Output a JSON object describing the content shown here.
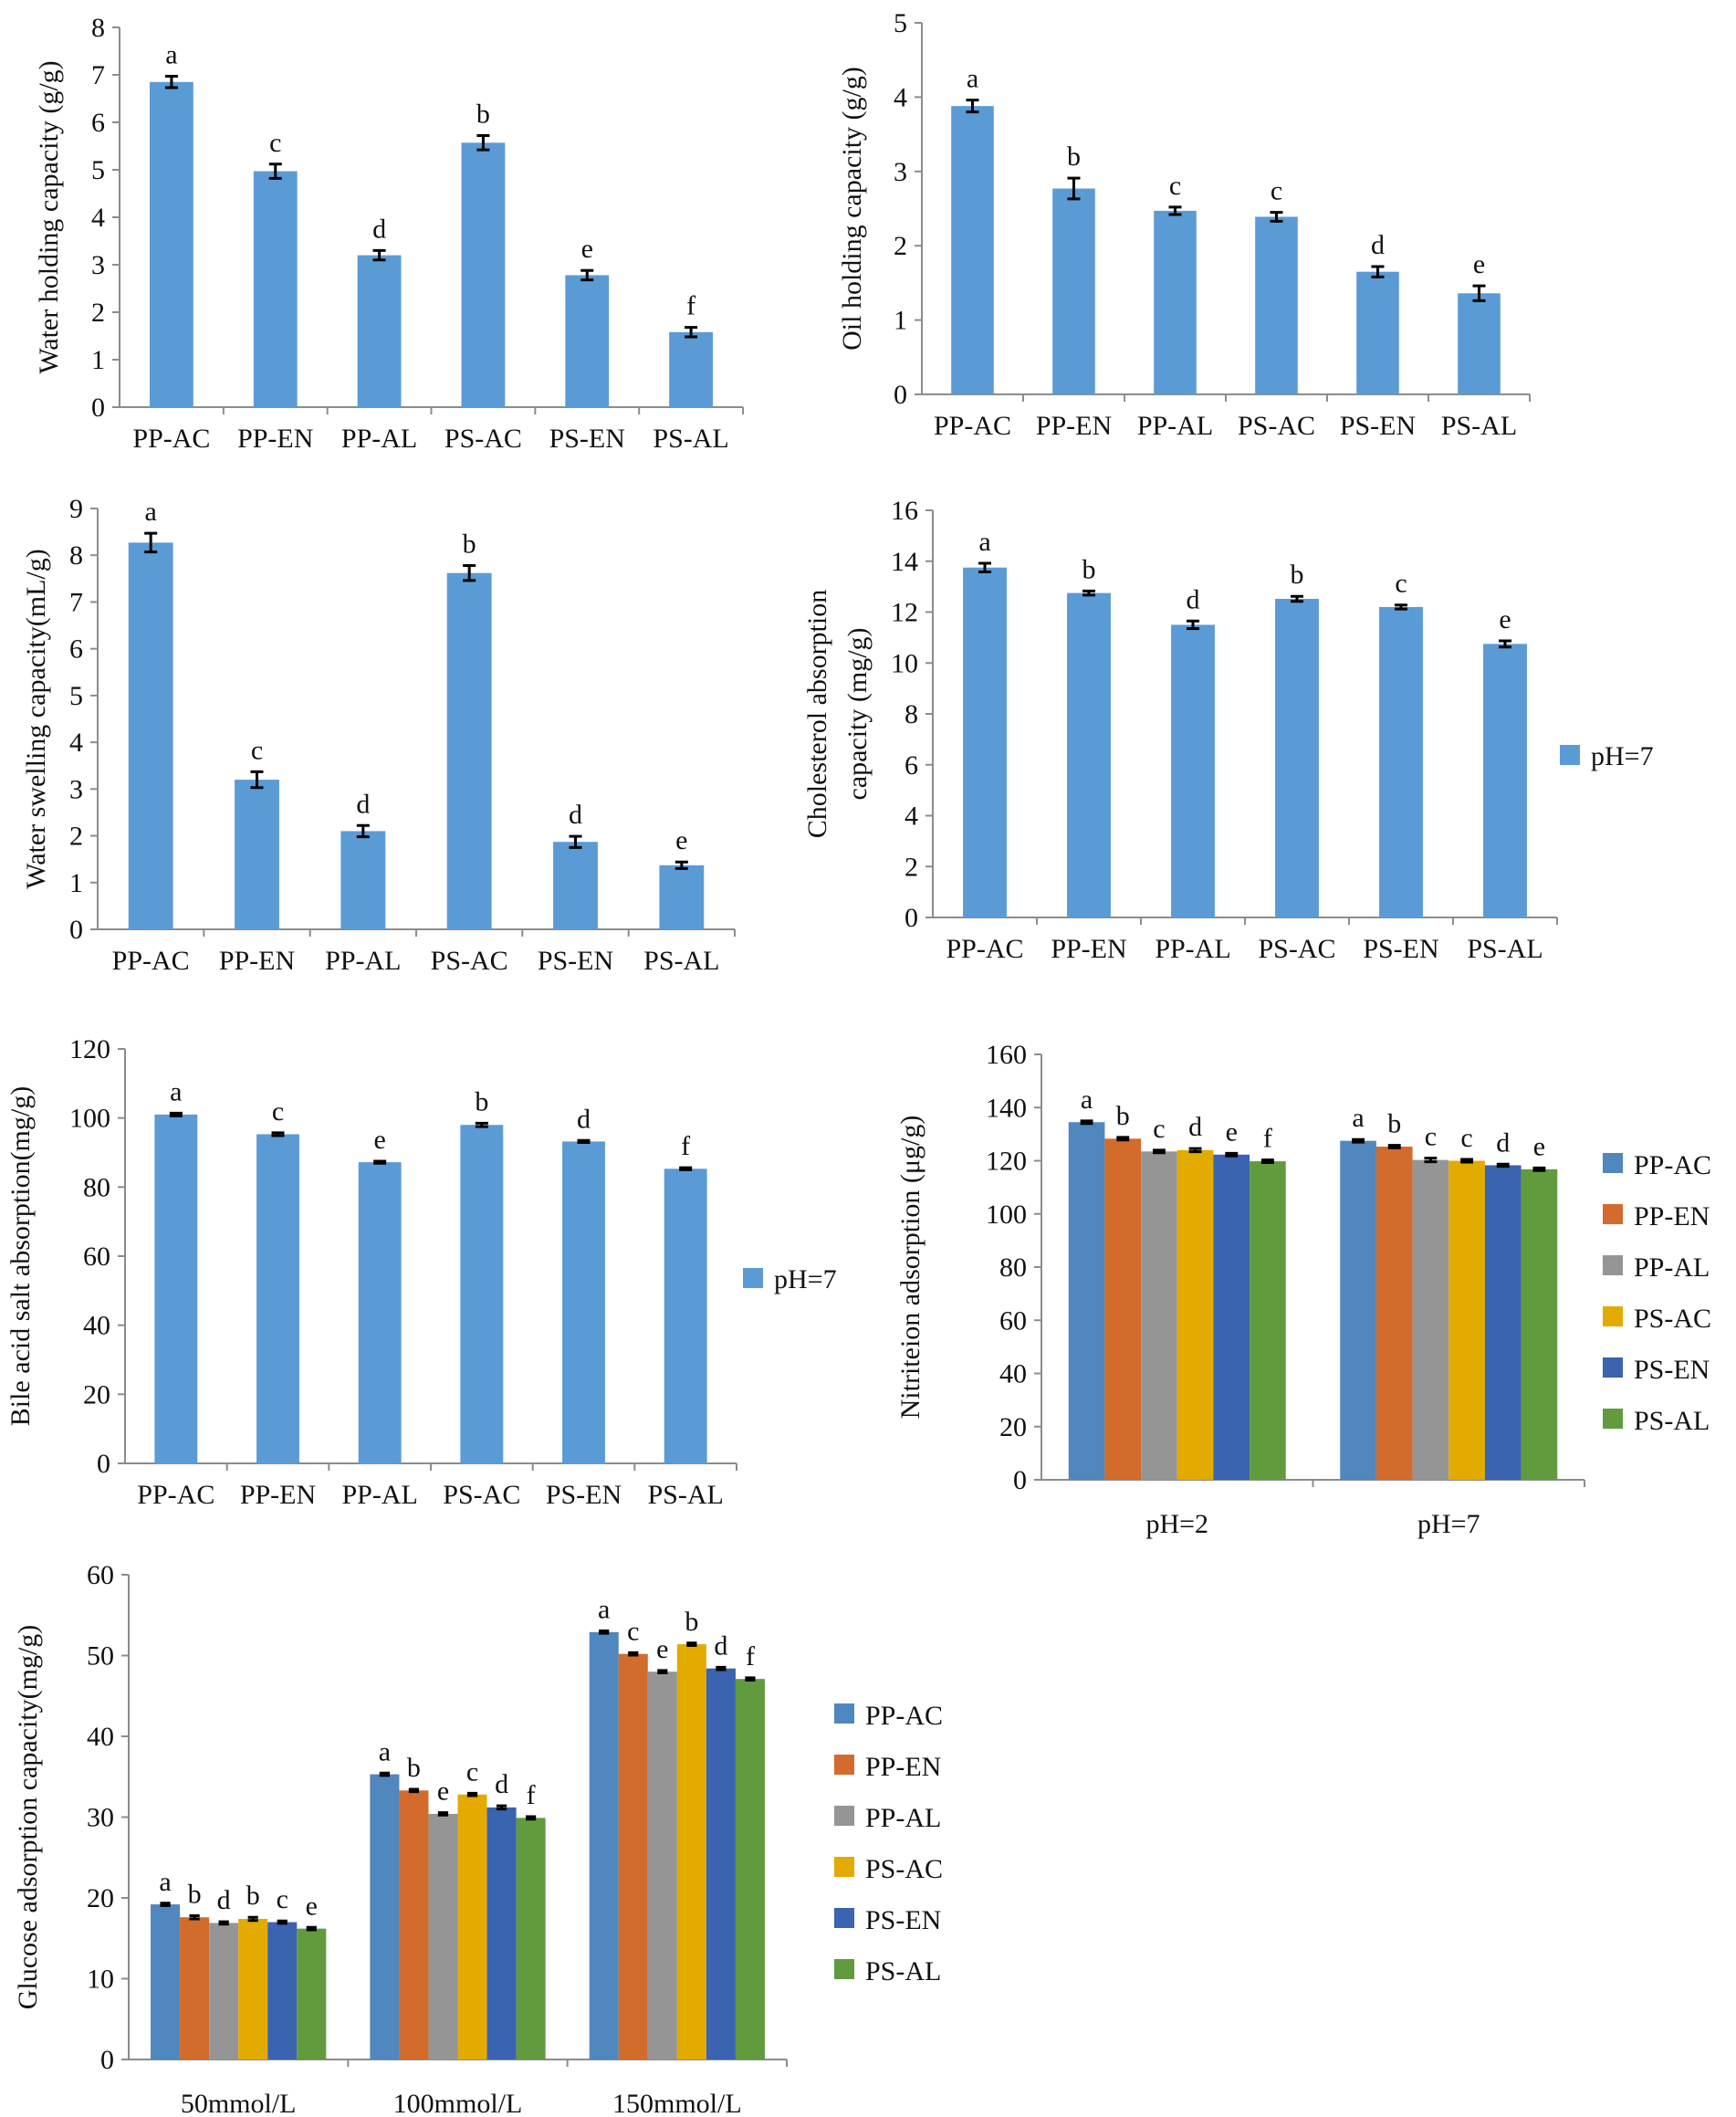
{
  "colors": {
    "single": "#5B9BD5",
    "series": [
      "#4F87BE",
      "#D26B2B",
      "#959595",
      "#E3AA00",
      "#3A63B0",
      "#619B3E"
    ],
    "axis": "#8C8C8C"
  },
  "chart_data": [
    {
      "type": "bar",
      "ylabel": "Water holding capacity (g/g)",
      "ylim": [
        0,
        8
      ],
      "ystep": 1,
      "categories": [
        "PP-AC",
        "PP-EN",
        "PP-AL",
        "PS-AC",
        "PS-EN",
        "PS-AL"
      ],
      "values": [
        6.85,
        4.97,
        3.2,
        5.57,
        2.78,
        1.58
      ],
      "errors": [
        0.12,
        0.15,
        0.1,
        0.15,
        0.1,
        0.1
      ],
      "letters": [
        "a",
        "c",
        "d",
        "b",
        "e",
        "f"
      ]
    },
    {
      "type": "bar",
      "ylabel": "Oil holding capacity (g/g)",
      "ylim": [
        0,
        5
      ],
      "ystep": 1,
      "categories": [
        "PP-AC",
        "PP-EN",
        "PP-AL",
        "PS-AC",
        "PS-EN",
        "PS-AL"
      ],
      "values": [
        3.88,
        2.77,
        2.47,
        2.39,
        1.65,
        1.36
      ],
      "errors": [
        0.08,
        0.14,
        0.05,
        0.06,
        0.07,
        0.1
      ],
      "letters": [
        "a",
        "b",
        "c",
        "c",
        "d",
        "e"
      ]
    },
    {
      "type": "bar",
      "ylabel": "Water swelling capacity(mL/g)",
      "ylim": [
        0,
        9
      ],
      "ystep": 1,
      "categories": [
        "PP-AC",
        "PP-EN",
        "PP-AL",
        "PS-AC",
        "PS-EN",
        "PS-AL"
      ],
      "values": [
        8.27,
        3.2,
        2.1,
        7.62,
        1.87,
        1.37
      ],
      "errors": [
        0.2,
        0.17,
        0.12,
        0.16,
        0.12,
        0.07
      ],
      "letters": [
        "a",
        "c",
        "d",
        "b",
        "d",
        "e"
      ]
    },
    {
      "type": "bar",
      "ylabel": [
        "Cholesterol absorption",
        "capacity (mg/g)"
      ],
      "ylim": [
        0,
        16
      ],
      "ystep": 2,
      "categories": [
        "PP-AC",
        "PP-EN",
        "PP-AL",
        "PS-AC",
        "PS-EN",
        "PS-AL"
      ],
      "values": [
        13.75,
        12.75,
        11.5,
        12.52,
        12.2,
        10.75
      ],
      "errors": [
        0.17,
        0.08,
        0.15,
        0.1,
        0.08,
        0.12
      ],
      "letters": [
        "a",
        "b",
        "d",
        "b",
        "c",
        "e"
      ],
      "legend": [
        "pH=7"
      ],
      "legend_position": "right"
    },
    {
      "type": "bar",
      "ylabel": "Bile acid salt absorption(mg/g)",
      "ylim": [
        0,
        120
      ],
      "ystep": 20,
      "categories": [
        "PP-AC",
        "PP-EN",
        "PP-AL",
        "PS-AC",
        "PS-EN",
        "PS-AL"
      ],
      "values": [
        101,
        95.3,
        87.2,
        98,
        93.2,
        85.3
      ],
      "errors": [
        0.4,
        0.4,
        0.3,
        0.5,
        0.3,
        0.3
      ],
      "letters": [
        "a",
        "c",
        "e",
        "b",
        "d",
        "f"
      ],
      "legend": [
        "pH=7"
      ],
      "legend_position": "right"
    },
    {
      "type": "bar",
      "ylabel": "Nitriteion adsorption (μg/g)",
      "ylim": [
        0,
        160
      ],
      "ystep": 20,
      "categories": [
        "pH=2",
        "pH=7"
      ],
      "series": [
        {
          "name": "PP-AC",
          "values": [
            134.5,
            127.5
          ],
          "errors": [
            0.5,
            0.5
          ],
          "letters": [
            "a",
            "a"
          ]
        },
        {
          "name": "PP-EN",
          "values": [
            128.3,
            125.3
          ],
          "errors": [
            0.5,
            0.5
          ],
          "letters": [
            "b",
            "b"
          ]
        },
        {
          "name": "PP-AL",
          "values": [
            123.5,
            120.3
          ],
          "errors": [
            0.5,
            0.7
          ],
          "letters": [
            "c",
            "c"
          ]
        },
        {
          "name": "PS-AC",
          "values": [
            124.0,
            120.0
          ],
          "errors": [
            0.6,
            0.5
          ],
          "letters": [
            "d",
            "c"
          ]
        },
        {
          "name": "PS-EN",
          "values": [
            122.3,
            118.3
          ],
          "errors": [
            0.5,
            0.4
          ],
          "letters": [
            "e",
            "d"
          ]
        },
        {
          "name": "PS-AL",
          "values": [
            119.8,
            116.8
          ],
          "errors": [
            0.5,
            0.5
          ],
          "letters": [
            "f",
            "e"
          ]
        }
      ],
      "legend_position": "right"
    },
    {
      "type": "bar",
      "ylabel": "Glucose adsorption capacity(mg/g)",
      "ylim": [
        0,
        60
      ],
      "ystep": 10,
      "categories": [
        "50mmol/L",
        "100mmol/L",
        "150mmol/L"
      ],
      "series": [
        {
          "name": "PP-AC",
          "values": [
            19.2,
            35.3,
            52.9
          ],
          "errors": [
            0.15,
            0.15,
            0.15
          ],
          "letters": [
            "a",
            "a",
            "a"
          ]
        },
        {
          "name": "PP-EN",
          "values": [
            17.6,
            33.3,
            50.2
          ],
          "errors": [
            0.2,
            0.15,
            0.15
          ],
          "letters": [
            "b",
            "b",
            "c"
          ]
        },
        {
          "name": "PP-AL",
          "values": [
            16.9,
            30.4,
            48.0
          ],
          "errors": [
            0.15,
            0.15,
            0.15
          ],
          "letters": [
            "d",
            "e",
            "e"
          ]
        },
        {
          "name": "PS-AC",
          "values": [
            17.4,
            32.8,
            51.4
          ],
          "errors": [
            0.2,
            0.15,
            0.15
          ],
          "letters": [
            "b",
            "c",
            "b"
          ]
        },
        {
          "name": "PS-EN",
          "values": [
            17.0,
            31.2,
            48.4
          ],
          "errors": [
            0.15,
            0.2,
            0.15
          ],
          "letters": [
            "c",
            "d",
            "d"
          ]
        },
        {
          "name": "PS-AL",
          "values": [
            16.2,
            29.9,
            47.1
          ],
          "errors": [
            0.15,
            0.15,
            0.15
          ],
          "letters": [
            "e",
            "f",
            "f"
          ]
        }
      ],
      "legend_position": "right"
    }
  ]
}
